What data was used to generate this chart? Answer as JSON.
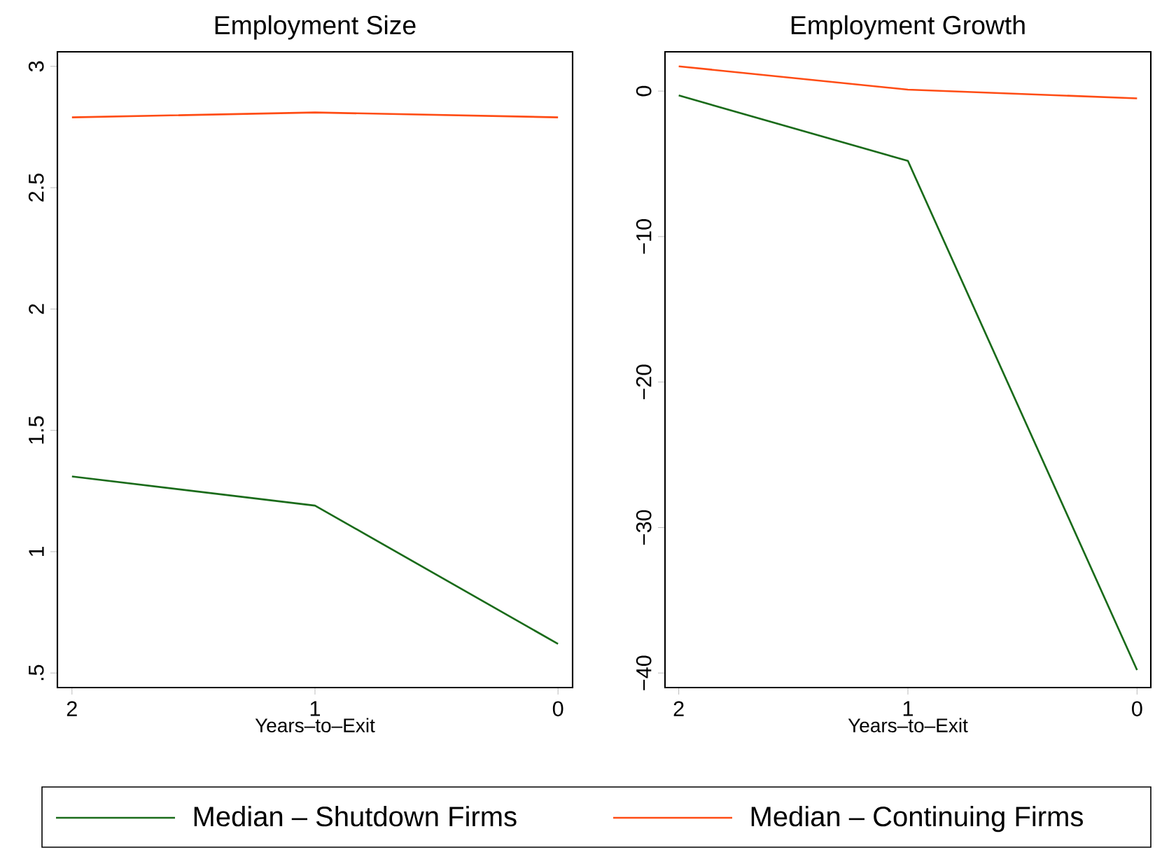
{
  "chart_data": [
    {
      "type": "line",
      "title": "Employment Size",
      "xlabel": "Years–to–Exit",
      "x": [
        2,
        1,
        0
      ],
      "xlim": [
        2.06,
        -0.06
      ],
      "xticks": [
        2,
        1,
        0
      ],
      "ylim": [
        0.44,
        3.06
      ],
      "yticks": [
        {
          "value": 0.5,
          "label": ".5"
        },
        1,
        1.5,
        2,
        2.5,
        3
      ],
      "grid": false,
      "legend": "bottom",
      "series": [
        {
          "name": "Median – Shutdown Firms",
          "color": "#1a6b1a",
          "values": [
            1.31,
            1.19,
            0.62
          ]
        },
        {
          "name": "Median – Continuing Firms",
          "color": "#ff4c14",
          "values": [
            2.79,
            2.81,
            2.79
          ]
        }
      ]
    },
    {
      "type": "line",
      "title": "Employment Growth",
      "xlabel": "Years–to–Exit",
      "x": [
        2,
        1,
        0
      ],
      "xlim": [
        2.06,
        -0.06
      ],
      "xticks": [
        2,
        1,
        0
      ],
      "ylim": [
        -41,
        2.7
      ],
      "yticks": [
        {
          "value": -40,
          "label": "−40"
        },
        {
          "value": -30,
          "label": "−30"
        },
        {
          "value": -20,
          "label": "−20"
        },
        {
          "value": -10,
          "label": "−10"
        },
        0
      ],
      "grid": false,
      "series": [
        {
          "color": "#1a6b1a",
          "values": [
            -0.3,
            -4.8,
            -39.8
          ]
        },
        {
          "color": "#ff4c14",
          "values": [
            1.7,
            0.1,
            -0.5
          ]
        }
      ]
    }
  ]
}
